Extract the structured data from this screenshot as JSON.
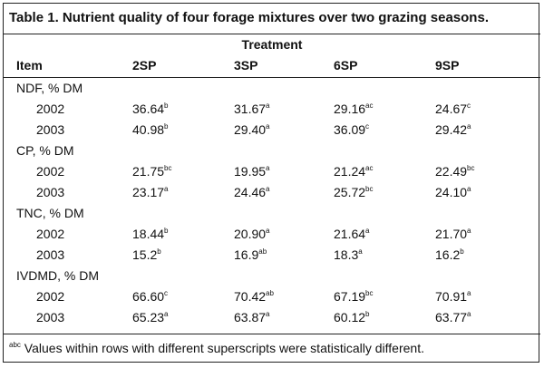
{
  "title": "Table 1.  Nutrient quality of four forage mixtures over two grazing seasons.",
  "group_header": "Treatment",
  "columns": [
    "Item",
    "2SP",
    "3SP",
    "6SP",
    "9SP"
  ],
  "sections": [
    {
      "label": "NDF, % DM",
      "rows": [
        {
          "year": "2002",
          "cells": [
            {
              "value": "36.64",
              "sup": "b"
            },
            {
              "value": "31.67",
              "sup": "a"
            },
            {
              "value": "29.16",
              "sup": "ac"
            },
            {
              "value": "24.67",
              "sup": "c"
            }
          ]
        },
        {
          "year": "2003",
          "cells": [
            {
              "value": "40.98",
              "sup": "b"
            },
            {
              "value": "29.40",
              "sup": "a"
            },
            {
              "value": "36.09",
              "sup": "c"
            },
            {
              "value": "29.42",
              "sup": "a"
            }
          ]
        }
      ]
    },
    {
      "label": "CP, % DM",
      "rows": [
        {
          "year": "2002",
          "cells": [
            {
              "value": "21.75",
              "sup": "bc"
            },
            {
              "value": "19.95",
              "sup": "a"
            },
            {
              "value": "21.24",
              "sup": "ac"
            },
            {
              "value": "22.49",
              "sup": "bc"
            }
          ]
        },
        {
          "year": "2003",
          "cells": [
            {
              "value": "23.17",
              "sup": "a"
            },
            {
              "value": "24.46",
              "sup": "a"
            },
            {
              "value": "25.72",
              "sup": "bc"
            },
            {
              "value": "24.10",
              "sup": "a"
            }
          ]
        }
      ]
    },
    {
      "label": "TNC, % DM",
      "rows": [
        {
          "year": "2002",
          "cells": [
            {
              "value": "18.44",
              "sup": "b"
            },
            {
              "value": "20.90",
              "sup": "a"
            },
            {
              "value": "21.64",
              "sup": "a"
            },
            {
              "value": "21.70",
              "sup": "a"
            }
          ]
        },
        {
          "year": "2003",
          "cells": [
            {
              "value": "15.2",
              "sup": "b"
            },
            {
              "value": "16.9",
              "sup": "ab"
            },
            {
              "value": "18.3",
              "sup": "a"
            },
            {
              "value": "16.2",
              "sup": "b"
            }
          ]
        }
      ]
    },
    {
      "label": "IVDMD, % DM",
      "rows": [
        {
          "year": "2002",
          "cells": [
            {
              "value": "66.60",
              "sup": "c"
            },
            {
              "value": "70.42",
              "sup": "ab"
            },
            {
              "value": "67.19",
              "sup": "bc"
            },
            {
              "value": "70.91",
              "sup": "a"
            }
          ]
        },
        {
          "year": "2003",
          "cells": [
            {
              "value": "65.23",
              "sup": "a"
            },
            {
              "value": "63.87",
              "sup": "a"
            },
            {
              "value": "60.12",
              "sup": "b"
            },
            {
              "value": "63.77",
              "sup": "a"
            }
          ]
        }
      ]
    }
  ],
  "footnote": {
    "sup": "abc",
    "text": "Values within rows with different superscripts were statistically different."
  }
}
